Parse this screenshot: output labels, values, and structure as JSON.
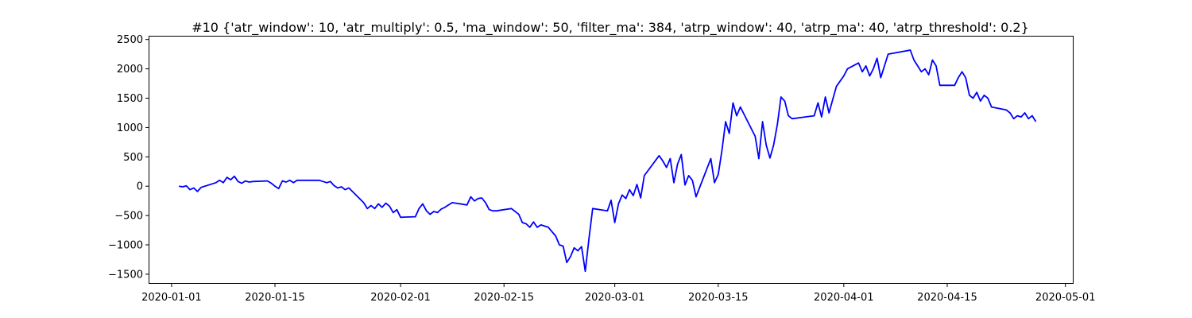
{
  "chart_data": {
    "type": "line",
    "title": "#10 {'atr_window': 10, 'atr_multiply': 0.5, 'ma_window': 50, 'filter_ma': 384, 'atrp_window': 40, 'atrp_ma': 40, 'atrp_threshold': 0.2}",
    "xlabel": "",
    "ylabel": "",
    "grid": false,
    "xlim": [
      "2019-12-29",
      "2020-05-02"
    ],
    "ylim": [
      -1650,
      2550
    ],
    "x_ticks": [
      "2020-01-01",
      "2020-01-15",
      "2020-02-01",
      "2020-02-15",
      "2020-03-01",
      "2020-03-15",
      "2020-04-01",
      "2020-04-15",
      "2020-05-01"
    ],
    "x_tick_labels": [
      "2020-01-01",
      "2020-01-15",
      "2020-02-01",
      "2020-02-15",
      "2020-03-01",
      "2020-03-15",
      "2020-04-01",
      "2020-04-15",
      "2020-05-01"
    ],
    "y_ticks": [
      -1500,
      -1000,
      -500,
      0,
      500,
      1000,
      1500,
      2000,
      2500
    ],
    "y_tick_labels": [
      "−1500",
      "−1000",
      "−500",
      "0",
      "500",
      "1000",
      "1500",
      "2000",
      "2500"
    ],
    "series": [
      {
        "color": "#0000ff",
        "points": [
          [
            "2020-01-02",
            0
          ],
          [
            "2020-01-02 12:00",
            -10
          ],
          [
            "2020-01-03",
            5
          ],
          [
            "2020-01-03 12:00",
            -60
          ],
          [
            "2020-01-04",
            -30
          ],
          [
            "2020-01-04 12:00",
            -90
          ],
          [
            "2020-01-05",
            -20
          ],
          [
            "2020-01-07",
            60
          ],
          [
            "2020-01-07 12:00",
            100
          ],
          [
            "2020-01-08",
            60
          ],
          [
            "2020-01-08 12:00",
            150
          ],
          [
            "2020-01-09",
            110
          ],
          [
            "2020-01-09 12:00",
            170
          ],
          [
            "2020-01-10",
            80
          ],
          [
            "2020-01-10 12:00",
            50
          ],
          [
            "2020-01-11",
            90
          ],
          [
            "2020-01-11 12:00",
            70
          ],
          [
            "2020-01-12",
            80
          ],
          [
            "2020-01-14",
            90
          ],
          [
            "2020-01-14 12:00",
            50
          ],
          [
            "2020-01-15",
            0
          ],
          [
            "2020-01-15 12:00",
            -40
          ],
          [
            "2020-01-16",
            90
          ],
          [
            "2020-01-16 12:00",
            70
          ],
          [
            "2020-01-17",
            100
          ],
          [
            "2020-01-17 12:00",
            60
          ],
          [
            "2020-01-18",
            100
          ],
          [
            "2020-01-21",
            100
          ],
          [
            "2020-01-21 12:00",
            80
          ],
          [
            "2020-01-22",
            60
          ],
          [
            "2020-01-22 12:00",
            80
          ],
          [
            "2020-01-23",
            10
          ],
          [
            "2020-01-23 12:00",
            -30
          ],
          [
            "2020-01-24",
            -10
          ],
          [
            "2020-01-24 12:00",
            -60
          ],
          [
            "2020-01-25",
            -30
          ],
          [
            "2020-01-27",
            -280
          ],
          [
            "2020-01-27 12:00",
            -380
          ],
          [
            "2020-01-28",
            -330
          ],
          [
            "2020-01-28 12:00",
            -380
          ],
          [
            "2020-01-29",
            -300
          ],
          [
            "2020-01-29 12:00",
            -360
          ],
          [
            "2020-01-30",
            -290
          ],
          [
            "2020-01-30 12:00",
            -340
          ],
          [
            "2020-01-31",
            -450
          ],
          [
            "2020-01-31 12:00",
            -400
          ],
          [
            "2020-02-01",
            -530
          ],
          [
            "2020-02-03",
            -520
          ],
          [
            "2020-02-03 12:00",
            -380
          ],
          [
            "2020-02-04",
            -300
          ],
          [
            "2020-02-04 12:00",
            -420
          ],
          [
            "2020-02-05",
            -480
          ],
          [
            "2020-02-05 12:00",
            -430
          ],
          [
            "2020-02-06",
            -450
          ],
          [
            "2020-02-06 12:00",
            -390
          ],
          [
            "2020-02-07",
            -360
          ],
          [
            "2020-02-07 12:00",
            -320
          ],
          [
            "2020-02-08",
            -280
          ],
          [
            "2020-02-10",
            -320
          ],
          [
            "2020-02-10 12:00",
            -180
          ],
          [
            "2020-02-11",
            -250
          ],
          [
            "2020-02-11 12:00",
            -210
          ],
          [
            "2020-02-12",
            -200
          ],
          [
            "2020-02-12 12:00",
            -280
          ],
          [
            "2020-02-13",
            -400
          ],
          [
            "2020-02-13 12:00",
            -420
          ],
          [
            "2020-02-14",
            -420
          ],
          [
            "2020-02-16",
            -380
          ],
          [
            "2020-02-17",
            -480
          ],
          [
            "2020-02-17 12:00",
            -620
          ],
          [
            "2020-02-18",
            -640
          ],
          [
            "2020-02-18 12:00",
            -700
          ],
          [
            "2020-02-19",
            -610
          ],
          [
            "2020-02-19 12:00",
            -700
          ],
          [
            "2020-02-20",
            -660
          ],
          [
            "2020-02-21",
            -700
          ],
          [
            "2020-02-22",
            -850
          ],
          [
            "2020-02-22 12:00",
            -1000
          ],
          [
            "2020-02-23",
            -1020
          ],
          [
            "2020-02-23 12:00",
            -1300
          ],
          [
            "2020-02-24",
            -1200
          ],
          [
            "2020-02-24 12:00",
            -1050
          ],
          [
            "2020-02-25",
            -1100
          ],
          [
            "2020-02-25 12:00",
            -1030
          ],
          [
            "2020-02-26",
            -1450
          ],
          [
            "2020-02-26 12:00",
            -900
          ],
          [
            "2020-02-27",
            -380
          ],
          [
            "2020-02-29",
            -420
          ],
          [
            "2020-02-29 12:00",
            -240
          ],
          [
            "2020-03-01",
            -620
          ],
          [
            "2020-03-01 12:00",
            -300
          ],
          [
            "2020-03-02",
            -150
          ],
          [
            "2020-03-02 12:00",
            -210
          ],
          [
            "2020-03-03",
            -60
          ],
          [
            "2020-03-03 12:00",
            -160
          ],
          [
            "2020-03-04",
            30
          ],
          [
            "2020-03-04 12:00",
            -200
          ],
          [
            "2020-03-05",
            180
          ],
          [
            "2020-03-07",
            520
          ],
          [
            "2020-03-07 12:00",
            430
          ],
          [
            "2020-03-08",
            320
          ],
          [
            "2020-03-08 12:00",
            470
          ],
          [
            "2020-03-09",
            60
          ],
          [
            "2020-03-09 12:00",
            380
          ],
          [
            "2020-03-10",
            540
          ],
          [
            "2020-03-10 12:00",
            20
          ],
          [
            "2020-03-11",
            180
          ],
          [
            "2020-03-11 12:00",
            100
          ],
          [
            "2020-03-12",
            -180
          ],
          [
            "2020-03-14",
            470
          ],
          [
            "2020-03-14 12:00",
            60
          ],
          [
            "2020-03-15",
            200
          ],
          [
            "2020-03-15 12:00",
            600
          ],
          [
            "2020-03-16",
            1100
          ],
          [
            "2020-03-16 12:00",
            900
          ],
          [
            "2020-03-17",
            1420
          ],
          [
            "2020-03-17 12:00",
            1200
          ],
          [
            "2020-03-18",
            1350
          ],
          [
            "2020-03-20",
            850
          ],
          [
            "2020-03-20 12:00",
            470
          ],
          [
            "2020-03-21",
            1100
          ],
          [
            "2020-03-21 12:00",
            700
          ],
          [
            "2020-03-22",
            480
          ],
          [
            "2020-03-22 12:00",
            700
          ],
          [
            "2020-03-23",
            1050
          ],
          [
            "2020-03-23 12:00",
            1520
          ],
          [
            "2020-03-24",
            1450
          ],
          [
            "2020-03-24 12:00",
            1200
          ],
          [
            "2020-03-25",
            1150
          ],
          [
            "2020-03-28",
            1200
          ],
          [
            "2020-03-28 12:00",
            1420
          ],
          [
            "2020-03-29",
            1180
          ],
          [
            "2020-03-29 12:00",
            1520
          ],
          [
            "2020-03-30",
            1250
          ],
          [
            "2020-03-31",
            1700
          ],
          [
            "2020-04-01",
            1880
          ],
          [
            "2020-04-01 12:00",
            2000
          ],
          [
            "2020-04-03",
            2100
          ],
          [
            "2020-04-03 12:00",
            1950
          ],
          [
            "2020-04-04",
            2050
          ],
          [
            "2020-04-04 12:00",
            1880
          ],
          [
            "2020-04-05",
            2000
          ],
          [
            "2020-04-05 12:00",
            2180
          ],
          [
            "2020-04-06",
            1850
          ],
          [
            "2020-04-06 12:00",
            2050
          ],
          [
            "2020-04-07",
            2250
          ],
          [
            "2020-04-10",
            2320
          ],
          [
            "2020-04-10 12:00",
            2150
          ],
          [
            "2020-04-11",
            2050
          ],
          [
            "2020-04-11 12:00",
            1950
          ],
          [
            "2020-04-12",
            2000
          ],
          [
            "2020-04-12 12:00",
            1900
          ],
          [
            "2020-04-13",
            2150
          ],
          [
            "2020-04-13 12:00",
            2050
          ],
          [
            "2020-04-14",
            1720
          ],
          [
            "2020-04-16",
            1720
          ],
          [
            "2020-04-16 12:00",
            1850
          ],
          [
            "2020-04-17",
            1950
          ],
          [
            "2020-04-17 12:00",
            1850
          ],
          [
            "2020-04-18",
            1550
          ],
          [
            "2020-04-18 12:00",
            1500
          ],
          [
            "2020-04-19",
            1600
          ],
          [
            "2020-04-19 12:00",
            1450
          ],
          [
            "2020-04-20",
            1550
          ],
          [
            "2020-04-20 12:00",
            1500
          ],
          [
            "2020-04-21",
            1350
          ],
          [
            "2020-04-23",
            1300
          ],
          [
            "2020-04-23 12:00",
            1250
          ],
          [
            "2020-04-24",
            1150
          ],
          [
            "2020-04-24 12:00",
            1200
          ],
          [
            "2020-04-25",
            1180
          ],
          [
            "2020-04-25 12:00",
            1250
          ],
          [
            "2020-04-26",
            1150
          ],
          [
            "2020-04-26 12:00",
            1200
          ],
          [
            "2020-04-27",
            1100
          ]
        ]
      }
    ]
  }
}
